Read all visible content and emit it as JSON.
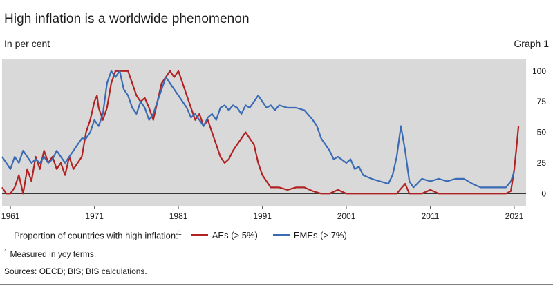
{
  "header": {
    "title": "High inflation is a worldwide phenomenon",
    "unit": "In per cent",
    "graph_number": "Graph 1"
  },
  "legend": {
    "prefix": "Proportion of countries with high inflation:",
    "prefix_footnote": "1",
    "items": [
      {
        "label": "AEs (> 5%)",
        "color": "#b22222"
      },
      {
        "label": "EMEs (> 7%)",
        "color": "#3a6bb5"
      }
    ]
  },
  "footnote": {
    "marker": "1",
    "text": "Measured in yoy terms."
  },
  "sources": "Sources: OECD; BIS; BIS calculations.",
  "chart_data": {
    "type": "line",
    "background": "#d9d9d9",
    "xlim": [
      1960,
      2022.4
    ],
    "ylim": [
      -10,
      110
    ],
    "x_ticks": [
      1961,
      1971,
      1981,
      1991,
      2001,
      2011,
      2021
    ],
    "y_ticks": [
      0,
      25,
      50,
      75,
      100
    ],
    "y_axis_side": "right",
    "zero_line": true,
    "series": [
      {
        "name": "AEs (> 5%)",
        "color": "#b22222",
        "points": [
          [
            1960.0,
            5
          ],
          [
            1960.5,
            0
          ],
          [
            1961.0,
            0
          ],
          [
            1961.5,
            5
          ],
          [
            1962.0,
            15
          ],
          [
            1962.5,
            0
          ],
          [
            1963.0,
            20
          ],
          [
            1963.5,
            10
          ],
          [
            1964.0,
            30
          ],
          [
            1964.5,
            20
          ],
          [
            1965.0,
            35
          ],
          [
            1965.5,
            25
          ],
          [
            1966.0,
            30
          ],
          [
            1966.5,
            20
          ],
          [
            1967.0,
            25
          ],
          [
            1967.5,
            15
          ],
          [
            1968.0,
            30
          ],
          [
            1968.5,
            20
          ],
          [
            1969.0,
            25
          ],
          [
            1969.5,
            30
          ],
          [
            1970.0,
            50
          ],
          [
            1970.5,
            60
          ],
          [
            1971.0,
            75
          ],
          [
            1971.3,
            80
          ],
          [
            1971.5,
            70
          ],
          [
            1972.0,
            60
          ],
          [
            1972.5,
            70
          ],
          [
            1973.0,
            90
          ],
          [
            1973.5,
            100
          ],
          [
            1974.0,
            100
          ],
          [
            1974.5,
            100
          ],
          [
            1975.0,
            100
          ],
          [
            1975.5,
            90
          ],
          [
            1976.0,
            80
          ],
          [
            1976.5,
            75
          ],
          [
            1977.0,
            78
          ],
          [
            1977.5,
            70
          ],
          [
            1978.0,
            60
          ],
          [
            1978.5,
            75
          ],
          [
            1979.0,
            90
          ],
          [
            1979.5,
            95
          ],
          [
            1980.0,
            100
          ],
          [
            1980.5,
            95
          ],
          [
            1981.0,
            100
          ],
          [
            1981.5,
            90
          ],
          [
            1982.0,
            80
          ],
          [
            1982.5,
            70
          ],
          [
            1983.0,
            60
          ],
          [
            1983.5,
            65
          ],
          [
            1984.0,
            55
          ],
          [
            1984.5,
            60
          ],
          [
            1985.0,
            50
          ],
          [
            1985.5,
            40
          ],
          [
            1986.0,
            30
          ],
          [
            1986.5,
            25
          ],
          [
            1987.0,
            28
          ],
          [
            1987.5,
            35
          ],
          [
            1988.0,
            40
          ],
          [
            1988.5,
            45
          ],
          [
            1989.0,
            50
          ],
          [
            1989.5,
            45
          ],
          [
            1990.0,
            40
          ],
          [
            1990.5,
            25
          ],
          [
            1991.0,
            15
          ],
          [
            1991.5,
            10
          ],
          [
            1992.0,
            5
          ],
          [
            1993.0,
            5
          ],
          [
            1994.0,
            3
          ],
          [
            1995.0,
            5
          ],
          [
            1996.0,
            5
          ],
          [
            1997.0,
            2
          ],
          [
            1998.0,
            0
          ],
          [
            1999.0,
            0
          ],
          [
            2000.0,
            3
          ],
          [
            2001.0,
            0
          ],
          [
            2004.0,
            0
          ],
          [
            2006.0,
            0
          ],
          [
            2007.0,
            0
          ],
          [
            2008.0,
            8
          ],
          [
            2008.5,
            0
          ],
          [
            2010.0,
            0
          ],
          [
            2011.0,
            3
          ],
          [
            2012.0,
            0
          ],
          [
            2020.0,
            0
          ],
          [
            2020.6,
            2
          ],
          [
            2021.0,
            20
          ],
          [
            2021.3,
            40
          ],
          [
            2021.5,
            55
          ]
        ]
      },
      {
        "name": "EMEs (> 7%)",
        "color": "#3a6bb5",
        "points": [
          [
            1960.0,
            30
          ],
          [
            1960.5,
            25
          ],
          [
            1961.0,
            20
          ],
          [
            1961.5,
            30
          ],
          [
            1962.0,
            25
          ],
          [
            1962.5,
            35
          ],
          [
            1963.0,
            30
          ],
          [
            1963.5,
            25
          ],
          [
            1964.0,
            28
          ],
          [
            1964.5,
            25
          ],
          [
            1965.0,
            30
          ],
          [
            1965.5,
            25
          ],
          [
            1966.0,
            28
          ],
          [
            1966.5,
            35
          ],
          [
            1967.0,
            30
          ],
          [
            1967.5,
            25
          ],
          [
            1968.0,
            30
          ],
          [
            1968.5,
            35
          ],
          [
            1969.0,
            40
          ],
          [
            1969.5,
            45
          ],
          [
            1970.0,
            45
          ],
          [
            1970.5,
            50
          ],
          [
            1971.0,
            60
          ],
          [
            1971.5,
            55
          ],
          [
            1972.0,
            65
          ],
          [
            1972.5,
            90
          ],
          [
            1973.0,
            100
          ],
          [
            1973.5,
            95
          ],
          [
            1974.0,
            100
          ],
          [
            1974.5,
            85
          ],
          [
            1975.0,
            80
          ],
          [
            1975.5,
            70
          ],
          [
            1976.0,
            65
          ],
          [
            1976.5,
            75
          ],
          [
            1977.0,
            70
          ],
          [
            1977.5,
            60
          ],
          [
            1978.0,
            65
          ],
          [
            1978.5,
            75
          ],
          [
            1979.0,
            85
          ],
          [
            1979.5,
            95
          ],
          [
            1980.0,
            90
          ],
          [
            1980.5,
            85
          ],
          [
            1981.0,
            80
          ],
          [
            1981.5,
            75
          ],
          [
            1982.0,
            70
          ],
          [
            1982.5,
            62
          ],
          [
            1983.0,
            65
          ],
          [
            1983.5,
            60
          ],
          [
            1984.0,
            55
          ],
          [
            1984.5,
            62
          ],
          [
            1985.0,
            65
          ],
          [
            1985.5,
            60
          ],
          [
            1986.0,
            70
          ],
          [
            1986.5,
            72
          ],
          [
            1987.0,
            68
          ],
          [
            1987.5,
            72
          ],
          [
            1988.0,
            70
          ],
          [
            1988.5,
            65
          ],
          [
            1989.0,
            72
          ],
          [
            1989.5,
            70
          ],
          [
            1990.0,
            75
          ],
          [
            1990.5,
            80
          ],
          [
            1991.0,
            75
          ],
          [
            1991.5,
            70
          ],
          [
            1992.0,
            72
          ],
          [
            1992.5,
            68
          ],
          [
            1993.0,
            72
          ],
          [
            1994.0,
            70
          ],
          [
            1995.0,
            70
          ],
          [
            1996.0,
            68
          ],
          [
            1997.0,
            60
          ],
          [
            1997.5,
            55
          ],
          [
            1998.0,
            45
          ],
          [
            1998.5,
            40
          ],
          [
            1999.0,
            35
          ],
          [
            1999.5,
            28
          ],
          [
            2000.0,
            30
          ],
          [
            2001.0,
            25
          ],
          [
            2001.5,
            28
          ],
          [
            2002.0,
            20
          ],
          [
            2002.5,
            22
          ],
          [
            2003.0,
            15
          ],
          [
            2004.0,
            12
          ],
          [
            2005.0,
            10
          ],
          [
            2006.0,
            8
          ],
          [
            2006.5,
            15
          ],
          [
            2007.0,
            30
          ],
          [
            2007.5,
            55
          ],
          [
            2008.0,
            35
          ],
          [
            2008.5,
            10
          ],
          [
            2009.0,
            5
          ],
          [
            2010.0,
            12
          ],
          [
            2011.0,
            10
          ],
          [
            2012.0,
            12
          ],
          [
            2013.0,
            10
          ],
          [
            2014.0,
            12
          ],
          [
            2015.0,
            12
          ],
          [
            2016.0,
            8
          ],
          [
            2017.0,
            5
          ],
          [
            2018.0,
            5
          ],
          [
            2019.0,
            5
          ],
          [
            2020.0,
            5
          ],
          [
            2020.6,
            10
          ],
          [
            2021.0,
            18
          ]
        ]
      }
    ]
  }
}
